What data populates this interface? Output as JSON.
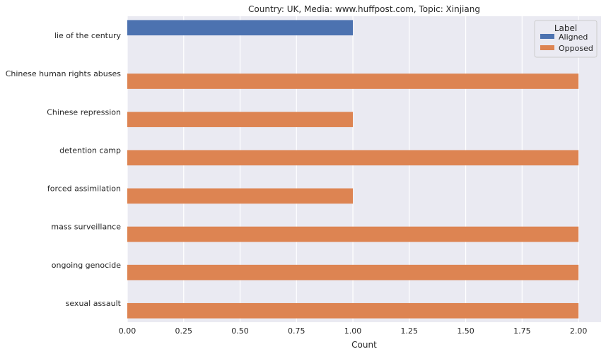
{
  "chart_data": {
    "type": "bar",
    "orientation": "horizontal",
    "title": "Country: UK, Media: www.huffpost.com, Topic: Xinjiang",
    "xlabel": "Count",
    "ylabel": "",
    "xlim": [
      0,
      2.1
    ],
    "x_ticks": [
      "0.00",
      "0.25",
      "0.50",
      "0.75",
      "1.00",
      "1.25",
      "1.50",
      "1.75",
      "2.00"
    ],
    "grid": true,
    "legend": {
      "title": "Label",
      "placement": "top-right"
    },
    "categories": [
      "lie of the century",
      "Chinese human rights abuses",
      "Chinese repression",
      "detention camp",
      "forced assimilation",
      "mass surveillance",
      "ongoing genocide",
      "sexual assault"
    ],
    "series": [
      {
        "name": "Aligned",
        "color": "#4c72b0",
        "values": [
          1,
          0,
          0,
          0,
          0,
          0,
          0,
          0
        ]
      },
      {
        "name": "Opposed",
        "color": "#dd8452",
        "values": [
          0,
          2,
          1,
          2,
          1,
          2,
          2,
          2
        ]
      }
    ]
  }
}
